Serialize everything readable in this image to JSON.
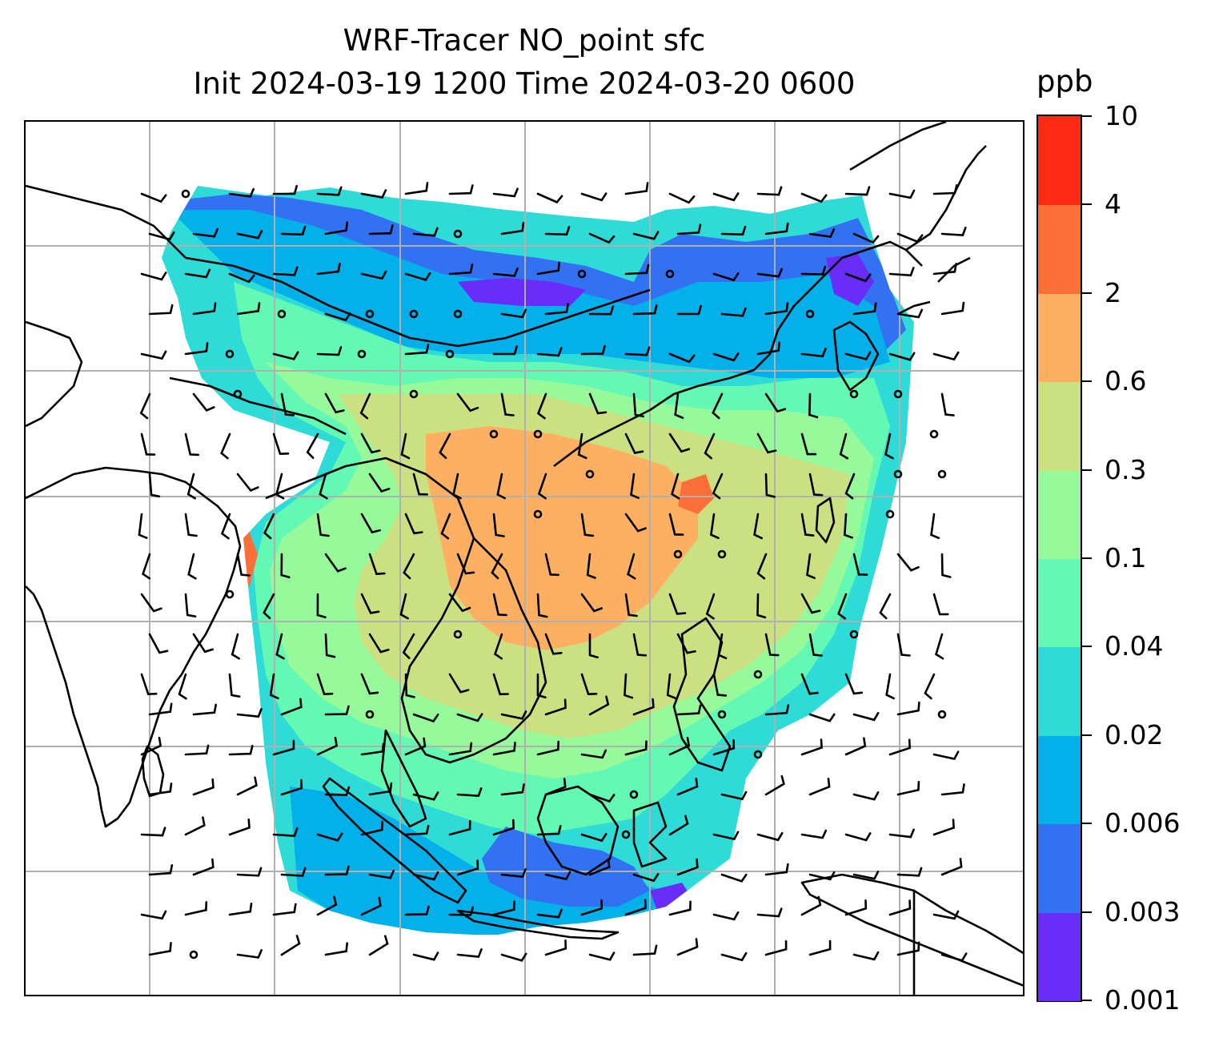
{
  "map": {
    "title_line1": "WRF-Tracer NO_point sfc",
    "title_line2": "Init 2024-03-19 1200 Time 2024-03-20 0600",
    "field": "NO_point tracer concentration (surface)",
    "overlay": "wind barbs",
    "gridlines": true
  },
  "colorbar": {
    "unit": "ppb",
    "levels": [
      "0.001",
      "0.003",
      "0.006",
      "0.02",
      "0.04",
      "0.1",
      "0.3",
      "0.6",
      "2",
      "4",
      "10"
    ],
    "colors": [
      "#6a2cf8",
      "#3272f2",
      "#04b0ea",
      "#2fdbd6",
      "#63f8b4",
      "#96f99a",
      "#cbe181",
      "#fdaf62",
      "#fd6f38",
      "#ff2a14"
    ]
  },
  "colors": {
    "land_line": "#000000",
    "grid": "#b0b0b0"
  }
}
